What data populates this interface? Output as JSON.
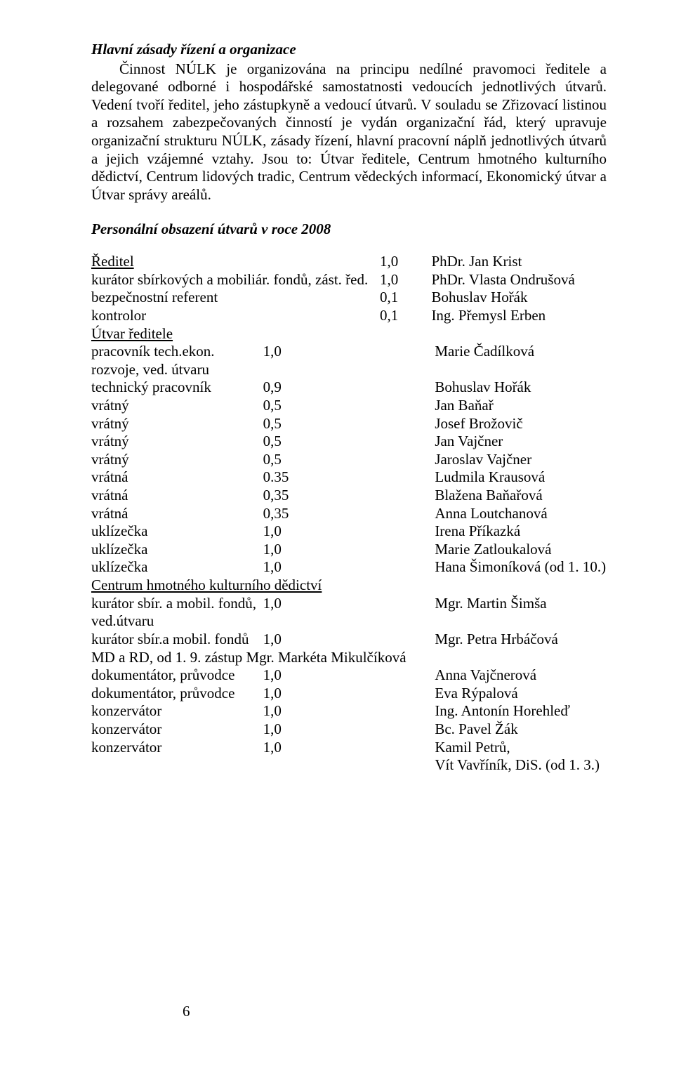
{
  "heading": "Hlavní zásady řízení a organizace",
  "paragraph_indent_lead": "Činnost NÚLK je organizována na principu nedílné pravomoci ředitele a delegované odborné i hospodářské samostatnosti vedoucích jednotlivých útvarů. Vedení tvoří ředitel, jeho zástupkyně a vedoucí útvarů. V souladu se Zřizovací listinou a rozsahem zabezpečovaných činností je vydán organizační řád, který upravuje organizační strukturu NÚLK, zásady řízení, hlavní pracovní náplň jednotlivých útvarů a jejich vzájemné vztahy. Jsou to: Útvar ředitele, Centrum hmotného kulturního dědictví, Centrum lidových tradic, Centrum vědeckých informací, Ekonomický útvar a Útvar správy areálů.",
  "subheading": "Personální obsazení útvarů v roce 2008",
  "block1": {
    "rows": [
      {
        "role": "Ředitel",
        "underline": true,
        "fte": "1,0",
        "name": "PhDr. Jan Krist"
      },
      {
        "role": "kurátor sbírkových a mobiliár. fondů, zást. řed.",
        "fte": "1,0",
        "name": "PhDr. Vlasta Ondrušová"
      },
      {
        "role": "bezpečnostní referent",
        "fte": "0,1",
        "name": "Bohuslav Hořák"
      },
      {
        "role": "kontrolor",
        "fte": "0,1",
        "name": "Ing. Přemysl Erben"
      }
    ]
  },
  "block2": {
    "title": "Útvar ředitele",
    "rows": [
      {
        "role": "pracovník tech.ekon. rozvoje, ved. útvaru",
        "fte": "1,0",
        "name": "Marie Čadílková"
      },
      {
        "role": "technický pracovník",
        "fte": "0,9",
        "name": "Bohuslav Hořák"
      },
      {
        "role": "vrátný",
        "fte": "0,5",
        "name": "Jan Baňař"
      },
      {
        "role": "vrátný",
        "fte": "0,5",
        "name": "Josef Brožovič"
      },
      {
        "role": "vrátný",
        "fte": "0,5",
        "name": "Jan Vajčner"
      },
      {
        "role": "vrátný",
        "fte": "0,5",
        "name": "Jaroslav Vajčner"
      },
      {
        "role": "vrátná",
        "fte": "0.35",
        "name": "Ludmila Krausová"
      },
      {
        "role": "vrátná",
        "fte": "0,35",
        "name": "Blažena Baňařová"
      },
      {
        "role": "vrátná",
        "fte": "0,35",
        "name": "Anna Loutchanová"
      },
      {
        "role": "uklízečka",
        "fte": "1,0",
        "name": "Irena Příkazká"
      },
      {
        "role": "uklízečka",
        "fte": "1,0",
        "name": "Marie Zatloukalová"
      },
      {
        "role": "uklízečka",
        "fte": "1,0",
        "name": "Hana Šimoníková (od 1. 10.)"
      }
    ]
  },
  "block3": {
    "title": "Centrum hmotného kulturního dědictví",
    "rows": [
      {
        "role": "kurátor sbír. a mobil. fondů, ved.útvaru",
        "fte": "1,0",
        "name": "Mgr. Martin Šimša"
      },
      {
        "role": "kurátor sbír.a mobil. fondů",
        "fte": "1,0",
        "name": "Mgr. Petra Hrbáčová"
      }
    ],
    "note": "MD a RD, od 1. 9. zástup Mgr. Markéta Mikulčíková",
    "rows2": [
      {
        "role": "dokumentátor, průvodce",
        "fte": "1,0",
        "name": "Anna Vajčnerová"
      },
      {
        "role": "dokumentátor, průvodce",
        "fte": "1,0",
        "name": "Eva Rýpalová"
      },
      {
        "role": "konzervátor",
        "fte": "1,0",
        "name": "Ing. Antonín Horehleď"
      },
      {
        "role": "konzervátor",
        "fte": "1,0",
        "name": "Bc. Pavel Žák"
      },
      {
        "role": "konzervátor",
        "fte": "1,0",
        "name": "Kamil Petrů,"
      }
    ],
    "tail_name": "Vít Vavříník, DiS. (od 1. 3.)"
  },
  "page_number": "6"
}
